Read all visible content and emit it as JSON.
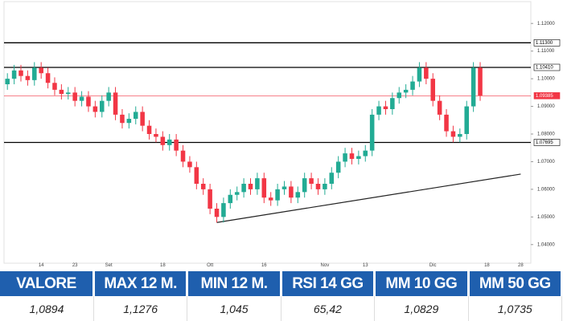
{
  "chart_data": {
    "type": "candlestick",
    "categories": [
      null,
      null,
      null,
      null,
      null,
      "14",
      null,
      null,
      null,
      null,
      "23",
      null,
      null,
      null,
      null,
      "Set",
      null,
      null,
      null,
      null,
      null,
      null,
      null,
      "18",
      null,
      null,
      null,
      null,
      null,
      null,
      "Ott",
      null,
      null,
      null,
      null,
      null,
      null,
      null,
      "16",
      null,
      null,
      null,
      null,
      null,
      null,
      null,
      null,
      "Nov",
      null,
      null,
      null,
      null,
      null,
      "13",
      null,
      null,
      null,
      null,
      null,
      null,
      null,
      null,
      null,
      "Dic",
      null,
      null,
      null,
      null,
      null,
      null,
      null,
      "18",
      null,
      null,
      null,
      null,
      "28",
      null
    ],
    "ohlc": [
      [
        1.098,
        1.102,
        1.096,
        1.1
      ],
      [
        1.1,
        1.105,
        1.098,
        1.103
      ],
      [
        1.103,
        1.105,
        1.099,
        1.101
      ],
      [
        1.101,
        1.103,
        1.0975,
        1.0995
      ],
      [
        1.0995,
        1.106,
        1.0975,
        1.104
      ],
      [
        1.104,
        1.106,
        1.1,
        1.102
      ],
      [
        1.102,
        1.104,
        1.0965,
        1.0985
      ],
      [
        1.0985,
        1.1005,
        1.094,
        1.096
      ],
      [
        1.096,
        1.098,
        1.0925,
        1.0945
      ],
      [
        1.0945,
        1.097,
        1.0925,
        1.095
      ],
      [
        1.095,
        1.097,
        1.09,
        1.092
      ],
      [
        1.092,
        1.0955,
        1.09,
        1.0935
      ],
      [
        1.0935,
        1.0955,
        1.088,
        1.09
      ],
      [
        1.09,
        1.092,
        1.086,
        1.088
      ],
      [
        1.088,
        1.094,
        1.086,
        1.092
      ],
      [
        1.092,
        1.097,
        1.09,
        1.095
      ],
      [
        1.095,
        1.097,
        1.085,
        1.087
      ],
      [
        1.087,
        1.089,
        1.082,
        1.084
      ],
      [
        1.084,
        1.0875,
        1.082,
        1.0855
      ],
      [
        1.0855,
        1.09,
        1.0835,
        1.088
      ],
      [
        1.088,
        1.09,
        1.081,
        1.083
      ],
      [
        1.083,
        1.085,
        1.078,
        1.08
      ],
      [
        1.08,
        1.082,
        1.077,
        1.079
      ],
      [
        1.079,
        1.081,
        1.074,
        1.076
      ],
      [
        1.076,
        1.08,
        1.074,
        1.078
      ],
      [
        1.078,
        1.08,
        1.072,
        1.074
      ],
      [
        1.074,
        1.076,
        1.068,
        1.07
      ],
      [
        1.07,
        1.072,
        1.066,
        1.068
      ],
      [
        1.068,
        1.07,
        1.06,
        1.062
      ],
      [
        1.062,
        1.064,
        1.058,
        1.06
      ],
      [
        1.06,
        1.062,
        1.051,
        1.053
      ],
      [
        1.053,
        1.055,
        1.048,
        1.05
      ],
      [
        1.05,
        1.057,
        1.048,
        1.055
      ],
      [
        1.055,
        1.06,
        1.053,
        1.058
      ],
      [
        1.058,
        1.061,
        1.056,
        1.059
      ],
      [
        1.059,
        1.064,
        1.057,
        1.062
      ],
      [
        1.062,
        1.064,
        1.058,
        1.06
      ],
      [
        1.06,
        1.066,
        1.058,
        1.064
      ],
      [
        1.064,
        1.066,
        1.055,
        1.057
      ],
      [
        1.057,
        1.059,
        1.054,
        1.056
      ],
      [
        1.056,
        1.062,
        1.054,
        1.06
      ],
      [
        1.06,
        1.063,
        1.058,
        1.061
      ],
      [
        1.061,
        1.063,
        1.055,
        1.057
      ],
      [
        1.057,
        1.061,
        1.055,
        1.059
      ],
      [
        1.059,
        1.066,
        1.057,
        1.064
      ],
      [
        1.064,
        1.066,
        1.06,
        1.062
      ],
      [
        1.062,
        1.064,
        1.058,
        1.06
      ],
      [
        1.06,
        1.064,
        1.058,
        1.062
      ],
      [
        1.062,
        1.068,
        1.06,
        1.066
      ],
      [
        1.066,
        1.072,
        1.064,
        1.07
      ],
      [
        1.07,
        1.075,
        1.068,
        1.073
      ],
      [
        1.073,
        1.075,
        1.069,
        1.071
      ],
      [
        1.071,
        1.074,
        1.069,
        1.072
      ],
      [
        1.072,
        1.076,
        1.07,
        1.074
      ],
      [
        1.074,
        1.089,
        1.072,
        1.087
      ],
      [
        1.087,
        1.092,
        1.085,
        1.09
      ],
      [
        1.09,
        1.092,
        1.087,
        1.089
      ],
      [
        1.089,
        1.095,
        1.087,
        1.093
      ],
      [
        1.093,
        1.097,
        1.091,
        1.095
      ],
      [
        1.095,
        1.098,
        1.093,
        1.096
      ],
      [
        1.096,
        1.101,
        1.094,
        1.099
      ],
      [
        1.099,
        1.106,
        1.097,
        1.104
      ],
      [
        1.104,
        1.106,
        1.098,
        1.1
      ],
      [
        1.1,
        1.102,
        1.09,
        1.092
      ],
      [
        1.092,
        1.094,
        1.085,
        1.087
      ],
      [
        1.087,
        1.089,
        1.079,
        1.081
      ],
      [
        1.081,
        1.083,
        1.077,
        1.079
      ],
      [
        1.079,
        1.082,
        1.077,
        1.08
      ],
      [
        1.08,
        1.092,
        1.078,
        1.09
      ],
      [
        1.09,
        1.106,
        1.088,
        1.104
      ],
      [
        1.104,
        1.106,
        1.092,
        1.09385
      ],
      null,
      null,
      null,
      null,
      null,
      null,
      null
    ],
    "up_color": "#22ab94",
    "down_color": "#f23645",
    "ylim": [
      1.035,
      1.125
    ],
    "yticks": [
      {
        "value": 1.04,
        "label": "1.04000"
      },
      {
        "value": 1.05,
        "label": "1.05000"
      },
      {
        "value": 1.06,
        "label": "1.06000"
      },
      {
        "value": 1.07,
        "label": "1.07000"
      },
      {
        "value": 1.08,
        "label": "1.08000"
      },
      {
        "value": 1.09,
        "label": "1.09000"
      },
      {
        "value": 1.1,
        "label": "1.10000"
      },
      {
        "value": 1.11,
        "label": "1.11000"
      },
      {
        "value": 1.12,
        "label": "1.12000"
      }
    ],
    "levels": [
      {
        "value": 1.113,
        "label": "1.11300",
        "color": "#000000"
      },
      {
        "value": 1.1041,
        "label": "1.10410",
        "color": "#000000"
      },
      {
        "value": 1.07695,
        "label": "1.07695",
        "color": "#000000"
      },
      {
        "value": 1.09385,
        "label": "1.09385",
        "color": "#f23645"
      }
    ],
    "trendline": {
      "start": [
        31,
        1.048
      ],
      "end": [
        76,
        1.0655
      ]
    }
  },
  "table": {
    "headers": [
      "VALORE",
      "MAX 12 M.",
      "MIN 12 M.",
      "RSI 14 GG",
      "MM 10 GG",
      "MM 50 GG"
    ],
    "values": [
      "1,0894",
      "1,1276",
      "1,045",
      "65,42",
      "1,0829",
      "1,0735"
    ]
  }
}
